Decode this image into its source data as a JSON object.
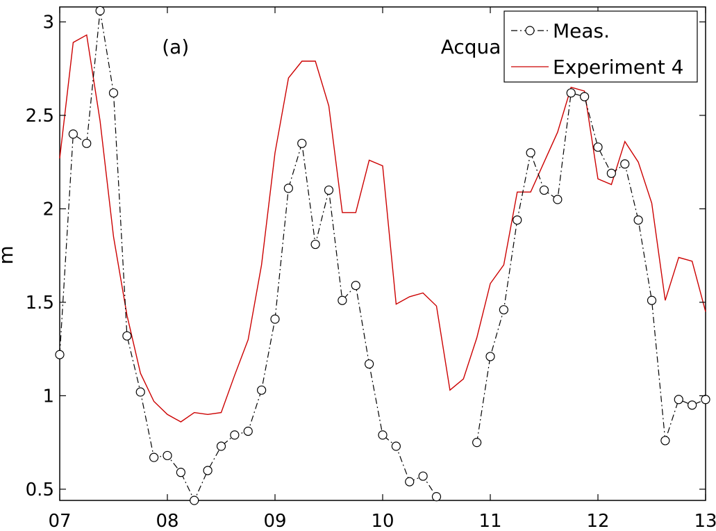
{
  "chart_data": {
    "type": "line",
    "title": "",
    "xlabel": "",
    "ylabel": "m",
    "xlim": [
      7,
      13
    ],
    "ylim": [
      0.44,
      3.08
    ],
    "xticks": [
      7,
      8,
      9,
      10,
      11,
      12,
      13
    ],
    "xtick_labels": [
      "07",
      "08",
      "09",
      "10",
      "11",
      "12",
      "13"
    ],
    "yticks": [
      0.5,
      1,
      1.5,
      2,
      2.5,
      3
    ],
    "ytick_labels": [
      "0.5",
      "1",
      "1.5",
      "2",
      "2.5",
      "3"
    ],
    "grid": false,
    "legend_position": "top-right",
    "annotations": [
      {
        "text": "(a)",
        "x": 7.95,
        "y": 2.83
      },
      {
        "text": "Acqua Alta",
        "x": 10.54,
        "y": 2.83
      }
    ],
    "series": [
      {
        "name": "Meas.",
        "color": "#000000",
        "line_style": "dash-dot",
        "marker": "circle",
        "segments": [
          {
            "x": [
              7.0,
              7.125,
              7.25,
              7.375,
              7.5,
              7.625,
              7.75,
              7.875,
              8.0,
              8.125,
              8.25,
              8.375,
              8.5,
              8.625,
              8.75,
              8.875,
              9.0,
              9.125,
              9.25,
              9.375,
              9.5,
              9.625,
              9.75,
              9.875,
              10.0,
              10.125,
              10.25,
              10.375,
              10.5
            ],
            "y": [
              1.22,
              2.4,
              2.35,
              3.06,
              2.62,
              1.32,
              1.02,
              0.67,
              0.68,
              0.59,
              0.44,
              0.6,
              0.73,
              0.79,
              0.81,
              1.03,
              1.41,
              2.11,
              2.35,
              1.81,
              2.1,
              1.51,
              1.59,
              1.17,
              0.79,
              0.73,
              0.54,
              0.57,
              0.46
            ]
          },
          {
            "x": [
              10.875,
              11.0,
              11.125,
              11.25,
              11.375,
              11.5,
              11.625,
              11.75,
              11.875,
              12.0,
              12.125,
              12.25,
              12.375,
              12.5,
              12.625,
              12.75,
              12.875,
              13.0
            ],
            "y": [
              0.75,
              1.21,
              1.46,
              1.94,
              2.3,
              2.1,
              2.05,
              2.62,
              2.6,
              2.33,
              2.19,
              2.24,
              1.94,
              1.51,
              0.76,
              0.98,
              0.95,
              0.98
            ]
          }
        ]
      },
      {
        "name": "Experiment 4",
        "color": "#cc0000",
        "line_style": "solid",
        "marker": "none",
        "segments": [
          {
            "x": [
              7.0,
              7.125,
              7.25,
              7.375,
              7.5,
              7.625,
              7.75,
              7.875,
              8.0,
              8.125,
              8.25,
              8.375,
              8.5,
              8.625,
              8.75,
              8.875,
              9.0,
              9.125,
              9.25,
              9.375,
              9.5,
              9.625,
              9.75,
              9.875,
              10.0,
              10.125,
              10.25,
              10.375,
              10.5,
              10.625,
              10.75,
              10.875,
              11.0,
              11.125,
              11.25,
              11.375,
              11.5,
              11.625,
              11.75,
              11.875,
              12.0,
              12.125,
              12.25,
              12.375,
              12.5,
              12.625,
              12.75,
              12.875,
              13.0
            ],
            "y": [
              2.27,
              2.89,
              2.93,
              2.47,
              1.85,
              1.43,
              1.12,
              0.97,
              0.9,
              0.86,
              0.91,
              0.9,
              0.91,
              1.11,
              1.3,
              1.7,
              2.3,
              2.7,
              2.79,
              2.79,
              2.55,
              1.98,
              1.98,
              2.26,
              2.23,
              1.49,
              1.53,
              1.55,
              1.48,
              1.03,
              1.09,
              1.31,
              1.6,
              1.7,
              2.09,
              2.09,
              2.25,
              2.41,
              2.65,
              2.63,
              2.16,
              2.13,
              2.36,
              2.25,
              2.03,
              1.51,
              1.74,
              1.72,
              1.45
            ]
          }
        ]
      }
    ]
  }
}
